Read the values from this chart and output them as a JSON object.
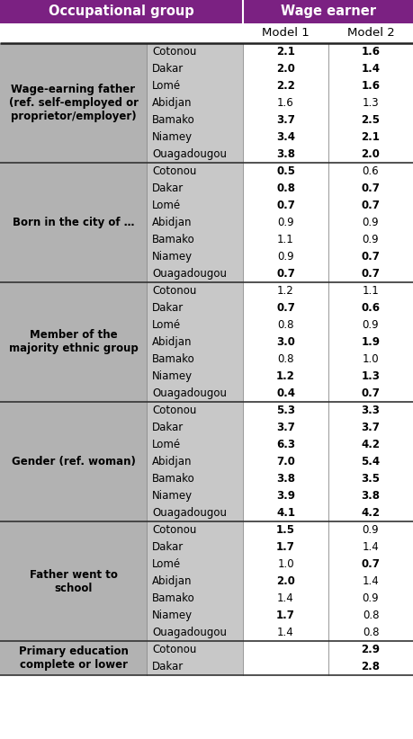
{
  "title_left": "Occupational group",
  "title_right": "Wage earner",
  "subheader_m1": "Model 1",
  "subheader_m2": "Model 2",
  "header_bg": "#7B2182",
  "header_text_color": "#FFFFFF",
  "left_col_bg": "#B2B2B2",
  "city_col_bg": "#C8C8C8",
  "data_col_bg": "#FFFFFF",
  "groups": [
    {
      "label": "Wage-earning father\n(ref. self-employed or\nproprietor/employer)",
      "cities": [
        "Cotonou",
        "Dakar",
        "Lomé",
        "Abidjan",
        "Bamako",
        "Niamey",
        "Ouagadougou"
      ],
      "m1": [
        "2.1",
        "2.0",
        "2.2",
        "1.6",
        "3.7",
        "3.4",
        "3.8"
      ],
      "m2": [
        "1.6",
        "1.4",
        "1.6",
        "1.3",
        "2.5",
        "2.1",
        "2.0"
      ],
      "m1_bold": [
        true,
        true,
        true,
        false,
        true,
        true,
        true
      ],
      "m2_bold": [
        true,
        true,
        true,
        false,
        true,
        true,
        true
      ]
    },
    {
      "label": "Born in the city of …",
      "cities": [
        "Cotonou",
        "Dakar",
        "Lomé",
        "Abidjan",
        "Bamako",
        "Niamey",
        "Ouagadougou"
      ],
      "m1": [
        "0.5",
        "0.8",
        "0.7",
        "0.9",
        "1.1",
        "0.9",
        "0.7"
      ],
      "m2": [
        "0.6",
        "0.7",
        "0.7",
        "0.9",
        "0.9",
        "0.7",
        "0.7"
      ],
      "m1_bold": [
        true,
        true,
        true,
        false,
        false,
        false,
        true
      ],
      "m2_bold": [
        false,
        true,
        true,
        false,
        false,
        true,
        true
      ]
    },
    {
      "label": "Member of the\nmajority ethnic group",
      "cities": [
        "Cotonou",
        "Dakar",
        "Lomé",
        "Abidjan",
        "Bamako",
        "Niamey",
        "Ouagadougou"
      ],
      "m1": [
        "1.2",
        "0.7",
        "0.8",
        "3.0",
        "0.8",
        "1.2",
        "0.4"
      ],
      "m2": [
        "1.1",
        "0.6",
        "0.9",
        "1.9",
        "1.0",
        "1.3",
        "0.7"
      ],
      "m1_bold": [
        false,
        true,
        false,
        true,
        false,
        true,
        true
      ],
      "m2_bold": [
        false,
        true,
        false,
        true,
        false,
        true,
        true
      ]
    },
    {
      "label": "Gender (ref. woman)",
      "cities": [
        "Cotonou",
        "Dakar",
        "Lomé",
        "Abidjan",
        "Bamako",
        "Niamey",
        "Ouagadougou"
      ],
      "m1": [
        "5.3",
        "3.7",
        "6.3",
        "7.0",
        "3.8",
        "3.9",
        "4.1"
      ],
      "m2": [
        "3.3",
        "3.7",
        "4.2",
        "5.4",
        "3.5",
        "3.8",
        "4.2"
      ],
      "m1_bold": [
        true,
        true,
        true,
        true,
        true,
        true,
        true
      ],
      "m2_bold": [
        true,
        true,
        true,
        true,
        true,
        true,
        true
      ]
    },
    {
      "label": "Father went to\nschool",
      "cities": [
        "Cotonou",
        "Dakar",
        "Lomé",
        "Abidjan",
        "Bamako",
        "Niamey",
        "Ouagadougou"
      ],
      "m1": [
        "1.5",
        "1.7",
        "1.0",
        "2.0",
        "1.4",
        "1.7",
        "1.4"
      ],
      "m2": [
        "0.9",
        "1.4",
        "0.7",
        "1.4",
        "0.9",
        "0.8",
        "0.8"
      ],
      "m1_bold": [
        true,
        true,
        false,
        true,
        false,
        true,
        false
      ],
      "m2_bold": [
        false,
        false,
        true,
        false,
        false,
        false,
        false
      ]
    },
    {
      "label": "Primary education\ncomplete or lower",
      "cities": [
        "Cotonou",
        "Dakar"
      ],
      "m1": [
        "",
        ""
      ],
      "m2": [
        "2.9",
        "2.8"
      ],
      "m1_bold": [
        false,
        false
      ],
      "m2_bold": [
        true,
        true
      ]
    }
  ]
}
